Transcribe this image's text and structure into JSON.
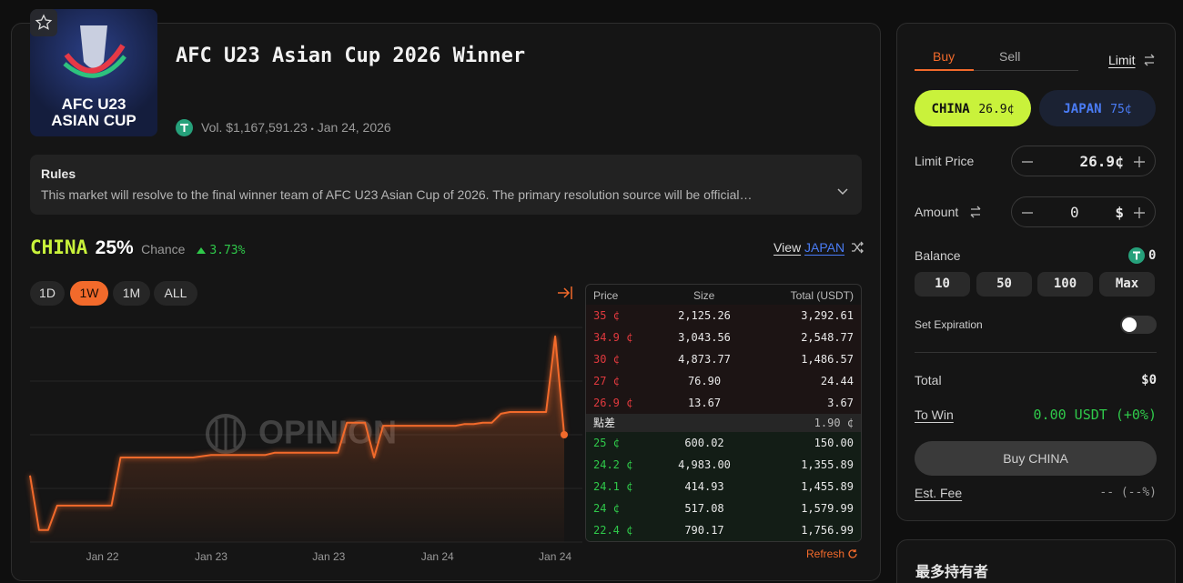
{
  "market": {
    "logo_text": [
      "AFC U23",
      "ASIAN CUP"
    ],
    "title": "AFC U23 Asian Cup 2026 Winner",
    "volume": "Vol. $1,167,591.23",
    "separator": "•",
    "date": "Jan 24, 2026"
  },
  "rules": {
    "title": "Rules",
    "text": "This market will resolve to the final winner team of AFC U23 Asian Cup of 2026. The primary resolution source will be official…"
  },
  "outcome": {
    "name": "CHINA",
    "chance": "25%",
    "chance_label": "Chance",
    "change": "3.73%",
    "view_prefix": "View",
    "view_target": "JAPAN"
  },
  "ranges": {
    "options": [
      "1D",
      "1W",
      "1M",
      "ALL"
    ],
    "active": 1
  },
  "chart_data": {
    "type": "line",
    "watermark": "OPINION",
    "color": "#f26a2b",
    "ylim": [
      0,
      50
    ],
    "grid": true,
    "categories": [
      null,
      null,
      null,
      null,
      null,
      null,
      null,
      null,
      "Jan 22",
      null,
      null,
      null,
      null,
      null,
      null,
      null,
      null,
      null,
      null,
      null,
      "Jan 23",
      null,
      null,
      null,
      null,
      null,
      null,
      null,
      null,
      null,
      null,
      null,
      null,
      "Jan 23",
      null,
      null,
      null,
      null,
      null,
      null,
      null,
      null,
      null,
      null,
      null,
      "Jan 24",
      null,
      null,
      null,
      null,
      null,
      null,
      null,
      null,
      null,
      null,
      null,
      null,
      "Jan 24",
      null
    ],
    "values": [
      15.5,
      2.8,
      2.8,
      8.5,
      8.5,
      8.5,
      8.5,
      8.5,
      8.5,
      8.5,
      19.7,
      19.7,
      19.7,
      19.7,
      19.7,
      19.7,
      19.7,
      19.7,
      19.7,
      20.0,
      20.3,
      20.3,
      20.3,
      20.3,
      20.3,
      20.3,
      20.3,
      20.8,
      20.8,
      20.8,
      20.8,
      20.8,
      20.8,
      20.8,
      20.8,
      27.8,
      27.8,
      27.8,
      19.7,
      27.1,
      27.1,
      27.1,
      27.1,
      27.1,
      27.1,
      27.1,
      27.1,
      27.1,
      27.5,
      27.5,
      27.8,
      27.8,
      29.9,
      30.3,
      30.3,
      30.3,
      30.3,
      30.3,
      47.9,
      25
    ]
  },
  "order_book": {
    "columns": [
      "Price",
      "Size",
      "Total (USDT)"
    ],
    "asks": [
      [
        "35 ¢",
        "2,125.26",
        "3,292.61"
      ],
      [
        "34.9 ¢",
        "3,043.56",
        "2,548.77"
      ],
      [
        "30 ¢",
        "4,873.77",
        "1,486.57"
      ],
      [
        "27 ¢",
        "76.90",
        "24.44"
      ],
      [
        "26.9 ¢",
        "13.67",
        "3.67"
      ]
    ],
    "spread_label": "點差",
    "spread": "1.90 ¢",
    "bids": [
      [
        "25 ¢",
        "600.02",
        "150.00"
      ],
      [
        "24.2 ¢",
        "4,983.00",
        "1,355.89"
      ],
      [
        "24.1 ¢",
        "414.93",
        "1,455.89"
      ],
      [
        "24 ¢",
        "517.08",
        "1,579.99"
      ],
      [
        "22.4 ¢",
        "790.17",
        "1,756.99"
      ]
    ],
    "refresh": "Refresh"
  },
  "trade": {
    "tabs": [
      "Buy",
      "Sell"
    ],
    "order_type": "Limit",
    "outcomes": [
      {
        "name": "CHINA",
        "price": "26.9¢"
      },
      {
        "name": "JAPAN",
        "price": "75¢"
      }
    ],
    "limit_price_label": "Limit Price",
    "limit_price": "26.9",
    "limit_price_unit": "¢",
    "amount_label": "Amount",
    "amount": "0",
    "amount_unit": "$",
    "balance_label": "Balance",
    "balance": "0",
    "quick_amounts": [
      "10",
      "50",
      "100",
      "Max"
    ],
    "expiration_label": "Set Expiration",
    "total_label": "Total",
    "total": "$0",
    "to_win_label": "To Win",
    "to_win": "0.00 USDT (+0%)",
    "submit": "Buy CHINA",
    "fee_label": "Est. Fee",
    "fee": "-- (--%)"
  },
  "holders": {
    "title": "最多持有者"
  }
}
